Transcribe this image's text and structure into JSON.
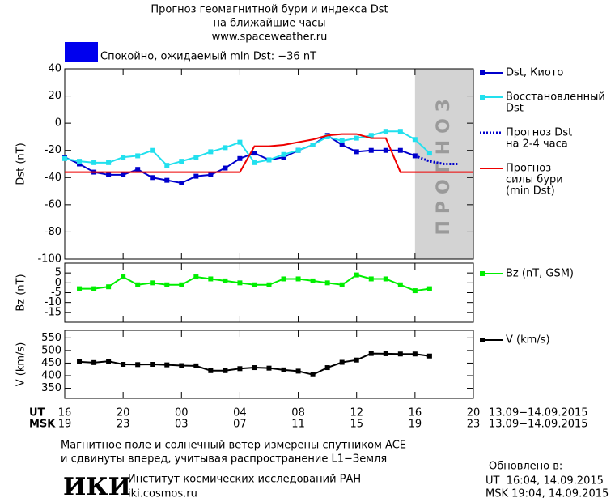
{
  "header": {
    "title_lines": [
      "Прогноз геомагнитной бури и индекса Dst",
      "на ближайшие часы"
    ],
    "url": "www.spaceweather.ru",
    "status": "Спокойно, ожидаемый min Dst: −36 nT",
    "status_color": "#0000ee"
  },
  "chart_data": [
    {
      "type": "line",
      "y_label": "Dst (nT)",
      "xlim": [
        0,
        28
      ],
      "ylim": [
        -100,
        40
      ],
      "yticks": [
        40,
        20,
        0,
        -20,
        -40,
        -60,
        -80,
        -100
      ],
      "forecast_region": {
        "from": 24,
        "to": 28,
        "label": "ПРОГНОЗ",
        "color": "#d3d3d3"
      },
      "series": [
        {
          "name": [
            "Dst, Киото"
          ],
          "color": "#0000cc",
          "marker": true,
          "style": "solid",
          "x": [
            0,
            1,
            2,
            3,
            4,
            5,
            6,
            7,
            8,
            9,
            10,
            11,
            12,
            13,
            14,
            15,
            16,
            17,
            18,
            19,
            20,
            21,
            22,
            23,
            24
          ],
          "values": [
            -25,
            -30,
            -36,
            -38,
            -38,
            -34,
            -40,
            -42,
            -44,
            -39,
            -38,
            -33,
            -26,
            -22,
            -27,
            -25,
            -20,
            -16,
            -9,
            -16,
            -21,
            -20,
            -20,
            -20,
            -24
          ]
        },
        {
          "name": [
            "Восстановленный",
            "Dst"
          ],
          "color": "#22e0ee",
          "marker": true,
          "style": "solid",
          "x": [
            0,
            1,
            2,
            3,
            4,
            5,
            6,
            7,
            8,
            9,
            10,
            11,
            12,
            13,
            14,
            15,
            16,
            17,
            18,
            19,
            20,
            21,
            22,
            23,
            24,
            25
          ],
          "values": [
            -26,
            -28,
            -29,
            -29,
            -25,
            -24,
            -20,
            -31,
            -28,
            -25,
            -21,
            -18,
            -14,
            -29,
            -27,
            -23,
            -20,
            -16,
            -10,
            -13,
            -11,
            -9,
            -6,
            -6,
            -12,
            -22
          ]
        },
        {
          "name": [
            "Прогноз Dst",
            "на 2-4 часа"
          ],
          "color": "#0000cc",
          "marker": false,
          "style": "dotted",
          "x": [
            24,
            25,
            26,
            27
          ],
          "values": [
            -24,
            -28,
            -30,
            -30
          ]
        },
        {
          "name": [
            "Прогноз",
            "силы бури",
            "(min Dst)"
          ],
          "color": "#ee0000",
          "marker": false,
          "style": "solid",
          "x": [
            0,
            12,
            13,
            14,
            15,
            16,
            17,
            18,
            19,
            20,
            21,
            22,
            23,
            28
          ],
          "values": [
            -36,
            -36,
            -17,
            -17,
            -16,
            -14,
            -12,
            -9,
            -8,
            -8,
            -11,
            -11,
            -36,
            -36
          ]
        }
      ]
    },
    {
      "type": "line",
      "y_label": "Bz (nT)",
      "xlim": [
        0,
        28
      ],
      "ylim": [
        -20,
        10
      ],
      "yticks": [
        5,
        0,
        -5,
        -10,
        -15
      ],
      "series": [
        {
          "name": [
            "Bz (nT, GSM)"
          ],
          "color": "#00ee00",
          "marker": true,
          "style": "solid",
          "x": [
            1,
            2,
            3,
            4,
            5,
            6,
            7,
            8,
            9,
            10,
            11,
            12,
            13,
            14,
            15,
            16,
            17,
            18,
            19,
            20,
            21,
            22,
            23,
            24,
            25
          ],
          "values": [
            -3,
            -3,
            -2,
            3,
            -1,
            0,
            -1,
            -1,
            3,
            2,
            1,
            0,
            -1,
            -1,
            2,
            2,
            1,
            0,
            -1,
            4,
            2,
            2,
            -1,
            -4,
            -3
          ]
        }
      ]
    },
    {
      "type": "line",
      "y_label": "V (km/s)",
      "xlim": [
        0,
        28
      ],
      "ylim": [
        310,
        580
      ],
      "yticks": [
        550,
        500,
        450,
        400,
        350
      ],
      "xticks": [
        {
          "value": 0,
          "label": "16"
        },
        {
          "value": 4,
          "label": "20"
        },
        {
          "value": 8,
          "label": "00"
        },
        {
          "value": 12,
          "label": "04"
        },
        {
          "value": 16,
          "label": "08"
        },
        {
          "value": 20,
          "label": "12"
        },
        {
          "value": 24,
          "label": "16"
        },
        {
          "value": 28,
          "label": "20"
        }
      ],
      "xticks_msk": [
        {
          "value": 0,
          "label": "19"
        },
        {
          "value": 4,
          "label": "23"
        },
        {
          "value": 8,
          "label": "03"
        },
        {
          "value": 12,
          "label": "07"
        },
        {
          "value": 16,
          "label": "11"
        },
        {
          "value": 20,
          "label": "15"
        },
        {
          "value": 24,
          "label": "19"
        },
        {
          "value": 28,
          "label": "23"
        }
      ],
      "x_row_labels": [
        "UT",
        "MSK"
      ],
      "date_range": "13.09−14.09.2015",
      "series": [
        {
          "name": [
            "V (km/s)"
          ],
          "color": "#000000",
          "marker": true,
          "style": "solid",
          "x": [
            1,
            2,
            3,
            4,
            5,
            6,
            7,
            8,
            9,
            10,
            11,
            12,
            13,
            14,
            15,
            16,
            17,
            18,
            19,
            20,
            21,
            22,
            23,
            24,
            25
          ],
          "values": [
            455,
            452,
            457,
            445,
            444,
            445,
            443,
            440,
            439,
            420,
            420,
            428,
            432,
            430,
            423,
            418,
            404,
            432,
            453,
            462,
            488,
            487,
            486,
            486,
            478
          ]
        }
      ]
    }
  ],
  "footer": {
    "note_lines": [
      "Магнитное поле и солнечный ветер измерены спутником ACE",
      "и сдвинуты вперед, учитывая распространение L1−Земля"
    ],
    "logo": "ИКИ",
    "institute": "Институт космических исследований РАН",
    "site": "iki.cosmos.ru",
    "updated_title": "Обновлено в:",
    "updated_lines": [
      "UT  16:04, 14.09.2015",
      "MSK 19:04, 14.09.2015"
    ]
  }
}
